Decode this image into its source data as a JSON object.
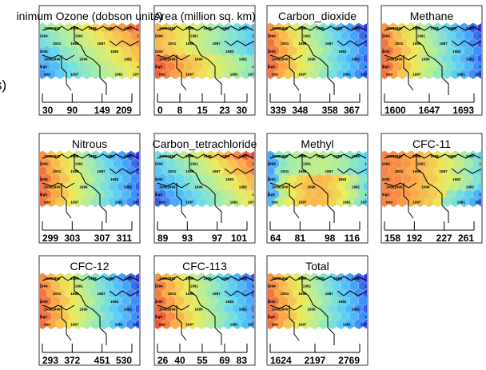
{
  "figure": {
    "left_label": "s)"
  },
  "chart_data": {
    "type": "heatmap",
    "description_of_cells": "Self-organizing map component planes on a hexagonal grid; each hexagon colored by the variable value (red = high, blue = low), with cluster borders and year labels.",
    "colorscale": [
      "#3333dd",
      "#44aaff",
      "#66ddee",
      "#aaf0a0",
      "#eeee55",
      "#ffaa44",
      "#ee4433"
    ],
    "year_labels": [
      {
        "text": "19931992",
        "col": 0,
        "row": 0
      },
      {
        "text": "1990",
        "col": 3,
        "row": 0
      },
      {
        "text": "1988",
        "col": 5,
        "row": 0
      },
      {
        "text": "1986",
        "col": 7,
        "row": 0
      },
      {
        "text": "1985",
        "col": 9,
        "row": 0
      },
      {
        "text": "1994",
        "col": -1,
        "row": 1
      },
      {
        "text": "1991",
        "col": 3,
        "row": 1
      },
      {
        "text": "1984",
        "col": 10,
        "row": 1
      },
      {
        "text": "2001",
        "col": 1,
        "row": 2
      },
      {
        "text": "1989",
        "col": 3,
        "row": 2
      },
      {
        "text": "1987",
        "col": 6,
        "row": 2
      },
      {
        "text": "2000",
        "col": -1,
        "row": 3
      },
      {
        "text": "1983",
        "col": 7,
        "row": 3
      },
      {
        "text": "19981999",
        "col": 0,
        "row": 4
      },
      {
        "text": "1996",
        "col": 4,
        "row": 4
      },
      {
        "text": "1982",
        "col": 9,
        "row": 4
      },
      {
        "text": "high",
        "col": -1,
        "row": 5
      },
      {
        "text": "1980",
        "col": 10,
        "row": 5
      },
      {
        "text": "min",
        "col": 0,
        "row": 6
      },
      {
        "text": "1997",
        "col": 3,
        "row": 6
      },
      {
        "text": "1981",
        "col": 8,
        "row": 6
      },
      {
        "text": "1979",
        "col": 10,
        "row": 6
      }
    ],
    "panels": [
      {
        "title": "inimum Ozone (dobson units)",
        "ticks": [
          "30",
          "90",
          "149",
          "209"
        ],
        "pattern": "ozone"
      },
      {
        "title": "Area (million sq. km)",
        "ticks": [
          "0",
          "8",
          "15",
          "23",
          "30"
        ],
        "pattern": "area"
      },
      {
        "title": "Carbon_dioxide",
        "ticks": [
          "339",
          "348",
          "358",
          "367"
        ],
        "pattern": "rising"
      },
      {
        "title": "Methane",
        "ticks": [
          "1600",
          "1647",
          "1693"
        ],
        "pattern": "rising"
      },
      {
        "title": "Nitrous",
        "ticks": [
          "299",
          "303",
          "307",
          "311"
        ],
        "pattern": "rising"
      },
      {
        "title": "Carbon_tetrachloride",
        "ticks": [
          "89",
          "93",
          "97",
          "101"
        ],
        "pattern": "falling"
      },
      {
        "title": "Methyl",
        "ticks": [
          "64",
          "81",
          "98",
          "116"
        ],
        "pattern": "methyl"
      },
      {
        "title": "CFC-11",
        "ticks": [
          "158",
          "192",
          "227",
          "261"
        ],
        "pattern": "cfc11"
      },
      {
        "title": "CFC-12",
        "ticks": [
          "293",
          "372",
          "451",
          "530"
        ],
        "pattern": "rising"
      },
      {
        "title": "CFC-113",
        "ticks": [
          "26",
          "40",
          "55",
          "69",
          "83"
        ],
        "pattern": "cfc113"
      },
      {
        "title": "Total",
        "ticks": [
          "1624",
          "2197",
          "2769"
        ],
        "pattern": "rising"
      }
    ]
  }
}
